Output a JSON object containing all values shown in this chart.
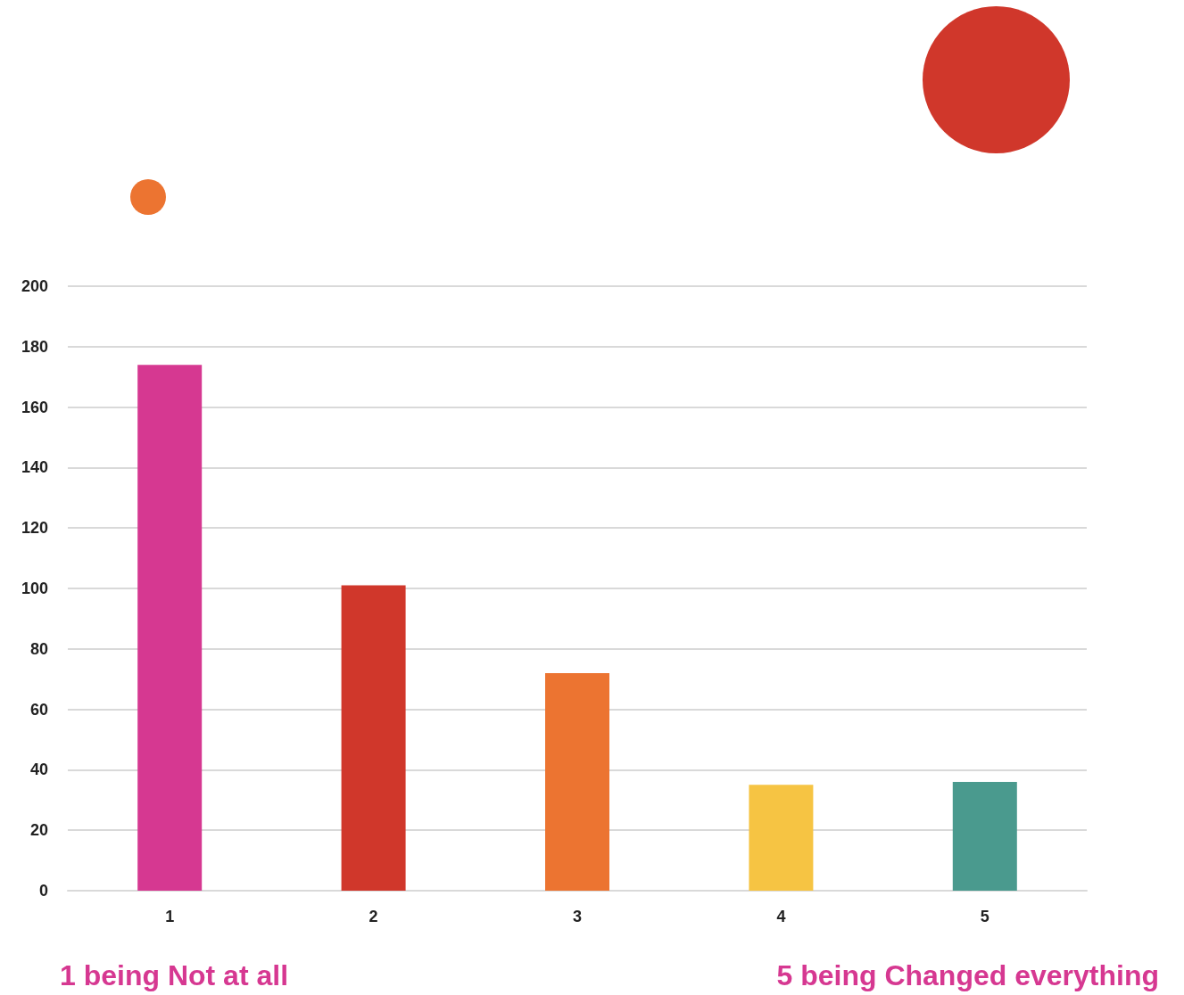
{
  "chart_data": {
    "type": "bar",
    "categories": [
      "1",
      "2",
      "3",
      "4",
      "5"
    ],
    "values": [
      174,
      101,
      72,
      35,
      36
    ],
    "colors": [
      "#d63891",
      "#d0372b",
      "#ec7431",
      "#f6c443",
      "#4a9a8e"
    ],
    "ylim": [
      0,
      200
    ],
    "yticks": [
      0,
      20,
      40,
      60,
      80,
      100,
      120,
      140,
      160,
      180,
      200
    ],
    "grid": "y",
    "annotations": [
      "1 being Not at all",
      "5 being Changed everything"
    ]
  }
}
